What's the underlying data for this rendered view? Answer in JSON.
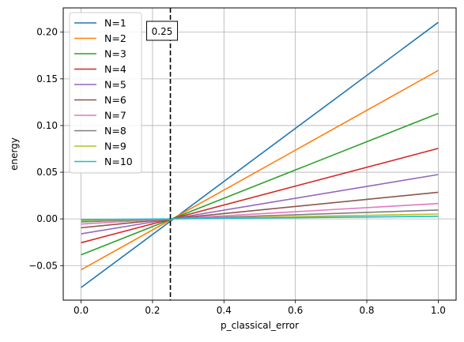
{
  "chart_data": {
    "type": "line",
    "xlabel": "p_classical_error",
    "ylabel": "energy",
    "xlim": [
      -0.05,
      1.05
    ],
    "ylim": [
      -0.087,
      0.226
    ],
    "xticks": [
      0.0,
      0.2,
      0.4,
      0.6,
      0.8,
      1.0
    ],
    "xtick_labels": [
      "0.0",
      "0.2",
      "0.4",
      "0.6",
      "0.8",
      "1.0"
    ],
    "yticks": [
      -0.05,
      0.0,
      0.05,
      0.1,
      0.15,
      0.2
    ],
    "ytick_labels": [
      "−0.05",
      "0.00",
      "0.05",
      "0.10",
      "0.15",
      "0.20"
    ],
    "grid": true,
    "legend_position": "top-left",
    "vertical_line": {
      "x": 0.25,
      "style": "dashed",
      "color": "#000000",
      "label": "0.25"
    },
    "series": [
      {
        "name": "N=1",
        "color": "#1f77b4",
        "x": [
          0.0,
          1.0
        ],
        "y": [
          -0.0735,
          0.2105
        ]
      },
      {
        "name": "N=2",
        "color": "#ff7f0e",
        "x": [
          0.0,
          1.0
        ],
        "y": [
          -0.0545,
          0.159
        ]
      },
      {
        "name": "N=3",
        "color": "#2ca02c",
        "x": [
          0.0,
          1.0
        ],
        "y": [
          -0.0385,
          0.113
        ]
      },
      {
        "name": "N=4",
        "color": "#d62728",
        "x": [
          0.0,
          1.0
        ],
        "y": [
          -0.0255,
          0.0755
        ]
      },
      {
        "name": "N=5",
        "color": "#9467bd",
        "x": [
          0.0,
          1.0
        ],
        "y": [
          -0.016,
          0.0475
        ]
      },
      {
        "name": "N=6",
        "color": "#8c564b",
        "x": [
          0.0,
          1.0
        ],
        "y": [
          -0.0095,
          0.0285
        ]
      },
      {
        "name": "N=7",
        "color": "#e377c2",
        "x": [
          0.0,
          1.0
        ],
        "y": [
          -0.0055,
          0.0165
        ]
      },
      {
        "name": "N=8",
        "color": "#7f7f7f",
        "x": [
          0.0,
          1.0
        ],
        "y": [
          -0.0032,
          0.0095
        ]
      },
      {
        "name": "N=9",
        "color": "#bcbd22",
        "x": [
          0.0,
          1.0
        ],
        "y": [
          -0.0018,
          0.0052
        ]
      },
      {
        "name": "N=10",
        "color": "#17becf",
        "x": [
          0.0,
          1.0
        ],
        "y": [
          -0.0009,
          0.0028
        ]
      }
    ]
  }
}
